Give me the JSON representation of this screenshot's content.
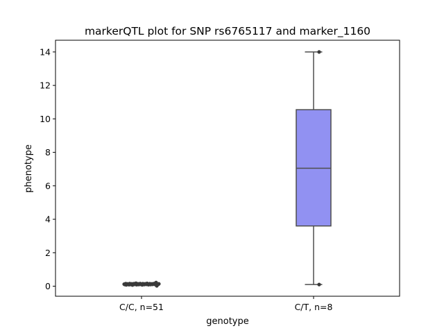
{
  "chart_data": {
    "type": "box",
    "title": "markerQTL plot for SNP rs6765117 and marker_1160",
    "xlabel": "genotype",
    "ylabel": "phenotype",
    "ylim": [
      -0.6,
      14.7
    ],
    "yticks": [
      0,
      2,
      4,
      6,
      8,
      10,
      12,
      14
    ],
    "categories": [
      "C/C, n=51",
      "C/T, n=8"
    ],
    "boxes": [
      {
        "category": "C/C, n=51",
        "min": 0.06,
        "q1": 0.1,
        "median": 0.13,
        "q3": 0.16,
        "max": 0.2,
        "color": "#9191f2",
        "points": [
          0.12,
          0.1,
          0.15,
          0.08,
          0.14,
          0.11,
          0.13,
          0.09,
          0.16,
          0.12,
          0.1,
          0.14,
          0.07,
          0.13,
          0.15,
          0.11,
          0.12,
          0.18,
          0.09,
          0.13,
          0.14,
          0.1,
          0.12,
          0.16,
          0.11,
          0.13,
          0.08,
          0.15,
          0.12,
          0.1,
          0.14,
          0.13,
          0.11,
          0.17,
          0.12,
          0.09,
          0.13,
          0.15,
          0.1,
          0.12,
          0.14,
          0.11,
          0.13,
          0.16,
          0.12,
          0.1,
          0.22,
          0.02,
          0.13,
          0.11,
          0.14
        ]
      },
      {
        "category": "C/T, n=8",
        "min": 0.1,
        "q1": 3.6,
        "median": 7.05,
        "q3": 10.55,
        "max": 14.0,
        "color": "#9191f2",
        "points": [
          0.1,
          14.0
        ]
      }
    ],
    "grid": false,
    "legend": "none"
  }
}
